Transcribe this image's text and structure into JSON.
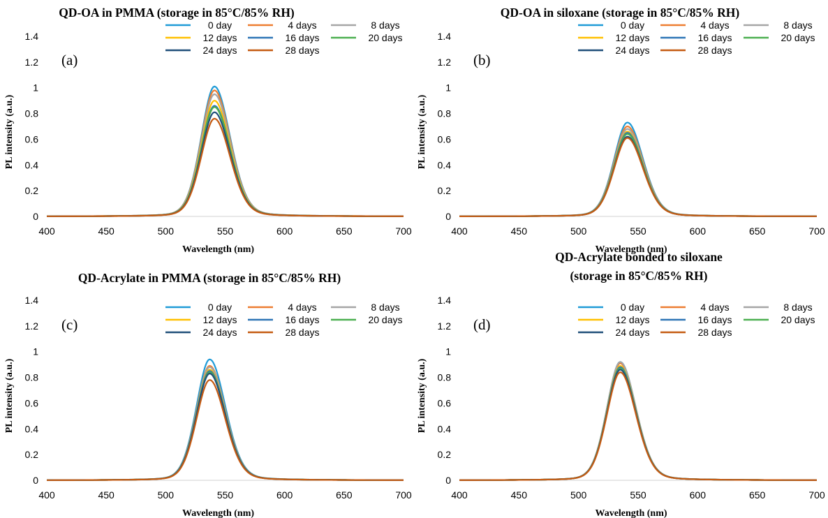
{
  "chart_data": [
    {
      "type": "line",
      "title": "QD-OA in PMMA (storage in 85°C/85% RH)",
      "panel_label": "(a)",
      "xlabel": "Wavelength (nm)",
      "ylabel": "PL intensity (a.u.)",
      "xlim": [
        400,
        700
      ],
      "ylim": [
        0,
        1.4
      ],
      "xticks": [
        "400",
        "450",
        "500",
        "550",
        "600",
        "650",
        "700"
      ],
      "yticks": [
        "0",
        "0.2",
        "0.4",
        "0.6",
        "0.8",
        "1",
        "1.2",
        "1.4"
      ],
      "grid": false,
      "legend_position": "top-right",
      "peak_center_nm": 541,
      "series": [
        {
          "name": "0 day",
          "color": "#1f9bd7",
          "peak": 1.01
        },
        {
          "name": "4 days",
          "color": "#ed7d31",
          "peak": 0.98
        },
        {
          "name": "8 days",
          "color": "#a5a5a5",
          "peak": 0.95
        },
        {
          "name": "12 days",
          "color": "#ffc000",
          "peak": 0.9
        },
        {
          "name": "16 days",
          "color": "#2e75b6",
          "peak": 0.86
        },
        {
          "name": "20 days",
          "color": "#4caf50",
          "peak": 0.85
        },
        {
          "name": "24 days",
          "color": "#1f4e79",
          "peak": 0.81
        },
        {
          "name": "28 days",
          "color": "#c55a11",
          "peak": 0.76
        }
      ]
    },
    {
      "type": "line",
      "title": "QD-OA in siloxane (storage in 85°C/85% RH)",
      "panel_label": "(b)",
      "xlabel": "Wavelength (nm)",
      "ylabel": "PL intensity (a.u.)",
      "xlim": [
        400,
        700
      ],
      "ylim": [
        0,
        1.4
      ],
      "xticks": [
        "400",
        "450",
        "500",
        "550",
        "600",
        "650",
        "700"
      ],
      "yticks": [
        "0",
        "0.2",
        "0.4",
        "0.6",
        "0.8",
        "1",
        "1.2",
        "1.4"
      ],
      "grid": false,
      "legend_position": "top-right",
      "peak_center_nm": 541,
      "series": [
        {
          "name": "0 day",
          "color": "#1f9bd7",
          "peak": 0.73
        },
        {
          "name": "4 days",
          "color": "#ed7d31",
          "peak": 0.7
        },
        {
          "name": "8 days",
          "color": "#a5a5a5",
          "peak": 0.68
        },
        {
          "name": "12 days",
          "color": "#ffc000",
          "peak": 0.66
        },
        {
          "name": "16 days",
          "color": "#2e75b6",
          "peak": 0.65
        },
        {
          "name": "20 days",
          "color": "#4caf50",
          "peak": 0.64
        },
        {
          "name": "24 days",
          "color": "#1f4e79",
          "peak": 0.62
        },
        {
          "name": "28 days",
          "color": "#c55a11",
          "peak": 0.61
        }
      ]
    },
    {
      "type": "line",
      "title": "QD-Acrylate in PMMA (storage in 85°C/85% RH)",
      "panel_label": "(c)",
      "xlabel": "Wavelength (nm)",
      "ylabel": "PL intensity (a.u.)",
      "xlim": [
        400,
        700
      ],
      "ylim": [
        0,
        1.4
      ],
      "xticks": [
        "400",
        "450",
        "500",
        "550",
        "600",
        "650",
        "700"
      ],
      "yticks": [
        "0",
        "0.2",
        "0.4",
        "0.6",
        "0.8",
        "1",
        "1.2",
        "1.4"
      ],
      "grid": false,
      "legend_position": "top-right",
      "peak_center_nm": 537,
      "series": [
        {
          "name": "0 day",
          "color": "#1f9bd7",
          "peak": 0.94
        },
        {
          "name": "4 days",
          "color": "#ed7d31",
          "peak": 0.89
        },
        {
          "name": "8 days",
          "color": "#a5a5a5",
          "peak": 0.88
        },
        {
          "name": "12 days",
          "color": "#ffc000",
          "peak": 0.86
        },
        {
          "name": "16 days",
          "color": "#2e75b6",
          "peak": 0.85
        },
        {
          "name": "20 days",
          "color": "#4caf50",
          "peak": 0.84
        },
        {
          "name": "24 days",
          "color": "#1f4e79",
          "peak": 0.83
        },
        {
          "name": "28 days",
          "color": "#c55a11",
          "peak": 0.78
        }
      ]
    },
    {
      "type": "line",
      "title": "QD-Acrylate bonded to siloxane\n(storage in 85°C/85% RH)",
      "panel_label": "(d)",
      "xlabel": "Wavelength (nm)",
      "ylabel": "PL intensity (a.u.)",
      "xlim": [
        400,
        700
      ],
      "ylim": [
        0,
        1.4
      ],
      "xticks": [
        "400",
        "450",
        "500",
        "550",
        "600",
        "650",
        "700"
      ],
      "yticks": [
        "0",
        "0.2",
        "0.4",
        "0.6",
        "0.8",
        "1",
        "1.2",
        "1.4"
      ],
      "grid": false,
      "legend_position": "top-right",
      "peak_center_nm": 535,
      "series": [
        {
          "name": "0 day",
          "color": "#1f9bd7",
          "peak": 0.92
        },
        {
          "name": "4 days",
          "color": "#ed7d31",
          "peak": 0.91
        },
        {
          "name": "8 days",
          "color": "#a5a5a5",
          "peak": 0.92
        },
        {
          "name": "12 days",
          "color": "#ffc000",
          "peak": 0.89
        },
        {
          "name": "16 days",
          "color": "#2e75b6",
          "peak": 0.88
        },
        {
          "name": "20 days",
          "color": "#4caf50",
          "peak": 0.87
        },
        {
          "name": "24 days",
          "color": "#1f4e79",
          "peak": 0.86
        },
        {
          "name": "28 days",
          "color": "#c55a11",
          "peak": 0.84
        }
      ]
    }
  ]
}
